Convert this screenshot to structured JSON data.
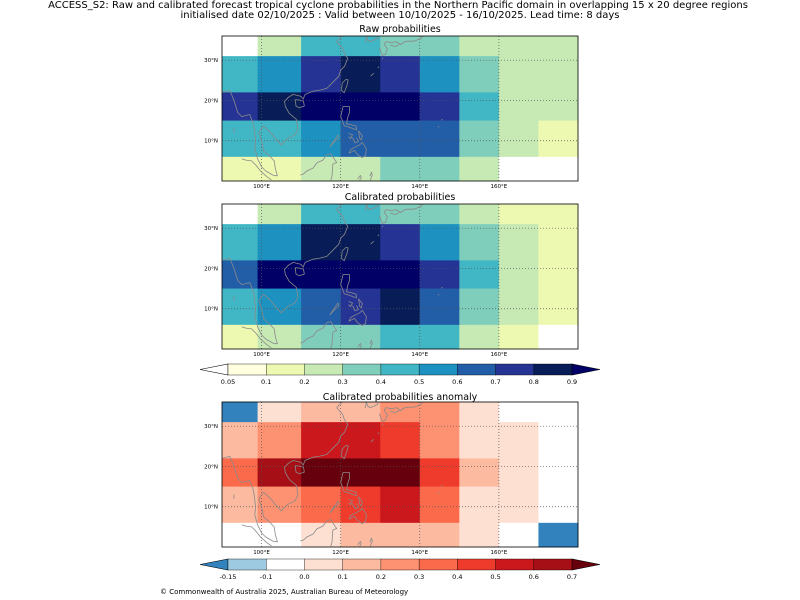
{
  "figure": {
    "title_line1": "ACCESS_S2: Raw and calibrated forecast tropical cyclone probabilities in the Northern Pacific domain in overlapping 15 x 20 degree regions",
    "title_line2": "initialised date 02/10/2025 :  Valid between 10/10/2025 - 16/10/2025. Lead time: 8 days",
    "credit": "© Commonwealth of Australia 2025, Australian Bureau of Meteorology"
  },
  "colors": {
    "coast": "#8a8a8a",
    "prob_scale": [
      "#ffffe0",
      "#edf8b1",
      "#c7e9b4",
      "#7fcdbb",
      "#41b6c4",
      "#1d91c0",
      "#225ea8",
      "#253494",
      "#081d58",
      "#000066"
    ],
    "anom_scale": [
      "#3182bd",
      "#9ecae1",
      "#ffffff",
      "#fee0d2",
      "#fcbba1",
      "#fc9272",
      "#fb6a4a",
      "#ef3b2c",
      "#cb181d",
      "#a50f15",
      "#67000d"
    ]
  },
  "chart_data": [
    {
      "type": "heatmap",
      "title": "Raw probabilities",
      "x_ticks": [
        "100°E",
        "120°E",
        "140°E",
        "160°E"
      ],
      "y_ticks": [
        "30°N",
        "20°N",
        "10°N"
      ],
      "xlim": [
        90,
        180
      ],
      "ylim": [
        0,
        36
      ],
      "rows": [
        {
          "lat": [
            31,
            36
          ],
          "cells": [
            {
              "lon": [
                90,
                99
              ],
              "v": null
            },
            {
              "lon": [
                99,
                110
              ],
              "v": 0.15
            },
            {
              "lon": [
                110,
                130
              ],
              "v": 0.35
            },
            {
              "lon": [
                130,
                150
              ],
              "v": 0.25
            },
            {
              "lon": [
                150,
                160
              ],
              "v": 0.15
            },
            {
              "lon": [
                160,
                180
              ],
              "v": 0.15
            }
          ]
        },
        {
          "lat": [
            22,
            31
          ],
          "cells": [
            {
              "lon": [
                90,
                99
              ],
              "v": 0.35
            },
            {
              "lon": [
                99,
                110
              ],
              "v": 0.45
            },
            {
              "lon": [
                110,
                120
              ],
              "v": 0.65
            },
            {
              "lon": [
                120,
                130
              ],
              "v": 0.75
            },
            {
              "lon": [
                130,
                140
              ],
              "v": 0.65
            },
            {
              "lon": [
                140,
                150
              ],
              "v": 0.45
            },
            {
              "lon": [
                150,
                160
              ],
              "v": 0.25
            },
            {
              "lon": [
                160,
                180
              ],
              "v": 0.15
            }
          ]
        },
        {
          "lat": [
            15,
            22
          ],
          "cells": [
            {
              "lon": [
                90,
                99
              ],
              "v": 0.65
            },
            {
              "lon": [
                99,
                110
              ],
              "v": 0.75
            },
            {
              "lon": [
                110,
                120
              ],
              "v": 0.85
            },
            {
              "lon": [
                120,
                130
              ],
              "v": 0.95
            },
            {
              "lon": [
                130,
                140
              ],
              "v": 0.85
            },
            {
              "lon": [
                140,
                150
              ],
              "v": 0.65
            },
            {
              "lon": [
                150,
                160
              ],
              "v": 0.35
            },
            {
              "lon": [
                160,
                180
              ],
              "v": 0.15
            }
          ]
        },
        {
          "lat": [
            6,
            15
          ],
          "cells": [
            {
              "lon": [
                90,
                110
              ],
              "v": 0.35
            },
            {
              "lon": [
                110,
                120
              ],
              "v": 0.45
            },
            {
              "lon": [
                120,
                150
              ],
              "v": 0.55
            },
            {
              "lon": [
                150,
                160
              ],
              "v": 0.25
            },
            {
              "lon": [
                160,
                170
              ],
              "v": 0.15
            },
            {
              "lon": [
                170,
                180
              ],
              "v": 0.07
            }
          ]
        },
        {
          "lat": [
            0,
            6
          ],
          "cells": [
            {
              "lon": [
                90,
                110
              ],
              "v": 0.07
            },
            {
              "lon": [
                110,
                130
              ],
              "v": 0.15
            },
            {
              "lon": [
                130,
                150
              ],
              "v": 0.25
            },
            {
              "lon": [
                150,
                160
              ],
              "v": 0.15
            },
            {
              "lon": [
                160,
                180
              ],
              "v": null
            }
          ]
        }
      ]
    },
    {
      "type": "heatmap",
      "title": "Calibrated probabilities",
      "x_ticks": [
        "100°E",
        "120°E",
        "140°E",
        "160°E"
      ],
      "y_ticks": [
        "30°N",
        "20°N",
        "10°N"
      ],
      "xlim": [
        90,
        180
      ],
      "ylim": [
        0,
        36
      ],
      "rows": [
        {
          "lat": [
            31,
            36
          ],
          "cells": [
            {
              "lon": [
                90,
                99
              ],
              "v": null
            },
            {
              "lon": [
                99,
                110
              ],
              "v": 0.15
            },
            {
              "lon": [
                110,
                130
              ],
              "v": 0.35
            },
            {
              "lon": [
                130,
                150
              ],
              "v": 0.25
            },
            {
              "lon": [
                150,
                160
              ],
              "v": 0.15
            },
            {
              "lon": [
                160,
                180
              ],
              "v": 0.07
            }
          ]
        },
        {
          "lat": [
            22,
            31
          ],
          "cells": [
            {
              "lon": [
                90,
                99
              ],
              "v": 0.35
            },
            {
              "lon": [
                99,
                110
              ],
              "v": 0.45
            },
            {
              "lon": [
                110,
                120
              ],
              "v": 0.75
            },
            {
              "lon": [
                120,
                130
              ],
              "v": 0.75
            },
            {
              "lon": [
                130,
                140
              ],
              "v": 0.65
            },
            {
              "lon": [
                140,
                150
              ],
              "v": 0.45
            },
            {
              "lon": [
                150,
                160
              ],
              "v": 0.25
            },
            {
              "lon": [
                160,
                170
              ],
              "v": 0.15
            },
            {
              "lon": [
                170,
                180
              ],
              "v": 0.07
            }
          ]
        },
        {
          "lat": [
            15,
            22
          ],
          "cells": [
            {
              "lon": [
                90,
                99
              ],
              "v": 0.55
            },
            {
              "lon": [
                99,
                110
              ],
              "v": 0.85
            },
            {
              "lon": [
                110,
                140
              ],
              "v": 0.95
            },
            {
              "lon": [
                140,
                150
              ],
              "v": 0.65
            },
            {
              "lon": [
                150,
                160
              ],
              "v": 0.35
            },
            {
              "lon": [
                160,
                170
              ],
              "v": 0.15
            },
            {
              "lon": [
                170,
                180
              ],
              "v": 0.07
            }
          ]
        },
        {
          "lat": [
            6,
            15
          ],
          "cells": [
            {
              "lon": [
                90,
                99
              ],
              "v": 0.35
            },
            {
              "lon": [
                99,
                110
              ],
              "v": 0.45
            },
            {
              "lon": [
                110,
                120
              ],
              "v": 0.55
            },
            {
              "lon": [
                120,
                130
              ],
              "v": 0.65
            },
            {
              "lon": [
                130,
                140
              ],
              "v": 0.75
            },
            {
              "lon": [
                140,
                150
              ],
              "v": 0.55
            },
            {
              "lon": [
                150,
                160
              ],
              "v": 0.25
            },
            {
              "lon": [
                160,
                170
              ],
              "v": 0.15
            },
            {
              "lon": [
                170,
                180
              ],
              "v": 0.07
            }
          ]
        },
        {
          "lat": [
            0,
            6
          ],
          "cells": [
            {
              "lon": [
                90,
                99
              ],
              "v": 0.07
            },
            {
              "lon": [
                99,
                110
              ],
              "v": 0.15
            },
            {
              "lon": [
                110,
                120
              ],
              "v": 0.25
            },
            {
              "lon": [
                120,
                130
              ],
              "v": 0.25
            },
            {
              "lon": [
                130,
                150
              ],
              "v": 0.35
            },
            {
              "lon": [
                150,
                160
              ],
              "v": 0.15
            },
            {
              "lon": [
                160,
                170
              ],
              "v": 0.07
            },
            {
              "lon": [
                170,
                180
              ],
              "v": null
            }
          ]
        }
      ]
    },
    {
      "type": "heatmap",
      "title": "Calibrated probabilities anomaly",
      "x_ticks": [
        "100°E",
        "120°E",
        "140°E",
        "160°E"
      ],
      "y_ticks": [
        "30°N",
        "20°N",
        "10°N"
      ],
      "xlim": [
        90,
        180
      ],
      "ylim": [
        0,
        36
      ],
      "rows": [
        {
          "lat": [
            31,
            36
          ],
          "cells": [
            {
              "lon": [
                90,
                99
              ],
              "v": -0.2
            },
            {
              "lon": [
                99,
                110
              ],
              "v": 0.0
            },
            {
              "lon": [
                110,
                130
              ],
              "v": 0.15
            },
            {
              "lon": [
                130,
                150
              ],
              "v": 0.25
            },
            {
              "lon": [
                150,
                160
              ],
              "v": 0.05
            },
            {
              "lon": [
                160,
                170
              ],
              "v": -0.1
            },
            {
              "lon": [
                170,
                180
              ],
              "v": -0.1
            }
          ]
        },
        {
          "lat": [
            22,
            31
          ],
          "cells": [
            {
              "lon": [
                90,
                99
              ],
              "v": 0.15
            },
            {
              "lon": [
                99,
                110
              ],
              "v": 0.25
            },
            {
              "lon": [
                110,
                120
              ],
              "v": 0.55
            },
            {
              "lon": [
                120,
                130
              ],
              "v": 0.55
            },
            {
              "lon": [
                130,
                140
              ],
              "v": 0.45
            },
            {
              "lon": [
                140,
                150
              ],
              "v": 0.25
            },
            {
              "lon": [
                150,
                160
              ],
              "v": 0.05
            },
            {
              "lon": [
                160,
                170
              ],
              "v": 0.0
            },
            {
              "lon": [
                170,
                180
              ],
              "v": -0.1
            }
          ]
        },
        {
          "lat": [
            15,
            22
          ],
          "cells": [
            {
              "lon": [
                90,
                99
              ],
              "v": 0.35
            },
            {
              "lon": [
                99,
                110
              ],
              "v": 0.65
            },
            {
              "lon": [
                110,
                140
              ],
              "v": 0.75
            },
            {
              "lon": [
                140,
                150
              ],
              "v": 0.45
            },
            {
              "lon": [
                150,
                160
              ],
              "v": 0.15
            },
            {
              "lon": [
                160,
                170
              ],
              "v": 0.0
            },
            {
              "lon": [
                170,
                180
              ],
              "v": -0.1
            }
          ]
        },
        {
          "lat": [
            6,
            15
          ],
          "cells": [
            {
              "lon": [
                90,
                99
              ],
              "v": 0.15
            },
            {
              "lon": [
                99,
                110
              ],
              "v": 0.25
            },
            {
              "lon": [
                110,
                120
              ],
              "v": 0.35
            },
            {
              "lon": [
                120,
                130
              ],
              "v": 0.45
            },
            {
              "lon": [
                130,
                140
              ],
              "v": 0.55
            },
            {
              "lon": [
                140,
                150
              ],
              "v": 0.35
            },
            {
              "lon": [
                150,
                160
              ],
              "v": 0.05
            },
            {
              "lon": [
                160,
                170
              ],
              "v": 0.0
            },
            {
              "lon": [
                170,
                180
              ],
              "v": -0.1
            }
          ]
        },
        {
          "lat": [
            0,
            6
          ],
          "cells": [
            {
              "lon": [
                90,
                99
              ],
              "v": -0.1
            },
            {
              "lon": [
                99,
                110
              ],
              "v": -0.1
            },
            {
              "lon": [
                110,
                120
              ],
              "v": 0.0
            },
            {
              "lon": [
                120,
                130
              ],
              "v": 0.15
            },
            {
              "lon": [
                130,
                150
              ],
              "v": 0.15
            },
            {
              "lon": [
                150,
                160
              ],
              "v": 0.0
            },
            {
              "lon": [
                160,
                170
              ],
              "v": -0.1
            },
            {
              "lon": [
                170,
                180
              ],
              "v": -0.2
            }
          ]
        }
      ]
    }
  ],
  "colorbars": {
    "probability": {
      "boundaries": [
        0.05,
        0.1,
        0.2,
        0.3,
        0.4,
        0.5,
        0.6,
        0.7,
        0.8,
        0.9
      ],
      "tick_labels": [
        "0.05",
        "0.1",
        "0.2",
        "0.3",
        "0.4",
        "0.5",
        "0.6",
        "0.7",
        "0.8",
        "0.9"
      ]
    },
    "anomaly": {
      "boundaries": [
        -0.15,
        -0.1,
        0.0,
        0.1,
        0.2,
        0.3,
        0.4,
        0.5,
        0.6,
        0.7
      ],
      "tick_labels": [
        "-0.15",
        "-0.1",
        "0.0",
        "0.1",
        "0.2",
        "0.3",
        "0.4",
        "0.5",
        "0.6",
        "0.7"
      ]
    }
  }
}
